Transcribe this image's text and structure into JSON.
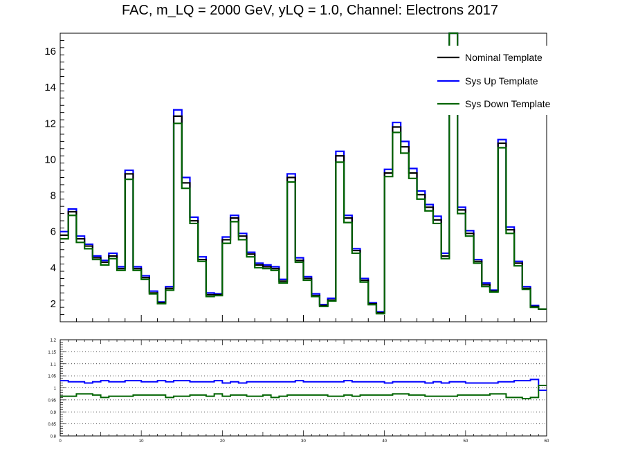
{
  "chart_data": [
    {
      "type": "line",
      "step": true,
      "title": "FAC, m_LQ = 2000 GeV, yLQ = 1.0, Channel: Electrons 2017",
      "xlim": [
        0,
        60
      ],
      "ylim": [
        1,
        17
      ],
      "y_ticks": [
        2,
        4,
        6,
        8,
        10,
        12,
        14,
        16
      ],
      "legend_position": "top-right",
      "series": [
        {
          "name": "Nominal Template",
          "color": "#000000",
          "values": [
            5.8,
            7.1,
            5.6,
            5.2,
            4.55,
            4.3,
            4.65,
            3.95,
            9.2,
            3.95,
            3.45,
            2.6,
            2.05,
            2.85,
            12.4,
            8.7,
            6.6,
            4.45,
            2.5,
            2.5,
            5.55,
            6.75,
            5.75,
            4.75,
            4.15,
            4.05,
            3.95,
            3.25,
            9.0,
            4.4,
            3.4,
            2.45,
            1.9,
            2.2,
            10.2,
            6.75,
            4.95,
            3.3,
            2.0,
            1.5,
            9.25,
            11.8,
            10.7,
            9.25,
            8.05,
            7.35,
            6.65,
            4.65,
            17.0,
            7.2,
            5.9,
            4.35,
            3.05,
            2.7,
            10.9,
            6.1,
            4.25,
            2.85,
            1.85,
            1.7
          ]
        },
        {
          "name": "Sys Up Template",
          "color": "#0000ff",
          "values": [
            6.0,
            7.25,
            5.75,
            5.3,
            4.65,
            4.4,
            4.8,
            4.05,
            9.4,
            4.05,
            3.55,
            2.7,
            2.1,
            2.95,
            12.75,
            9.0,
            6.8,
            4.6,
            2.6,
            2.55,
            5.7,
            6.9,
            5.9,
            4.85,
            4.25,
            4.15,
            4.05,
            3.35,
            9.2,
            4.55,
            3.5,
            2.55,
            1.95,
            2.3,
            10.45,
            6.9,
            5.05,
            3.4,
            2.05,
            1.55,
            9.45,
            12.05,
            11.0,
            9.5,
            8.25,
            7.5,
            6.85,
            4.8,
            17.0,
            7.35,
            6.05,
            4.45,
            3.15,
            2.75,
            11.1,
            6.25,
            4.35,
            2.95,
            1.9,
            1.7
          ]
        },
        {
          "name": "Sys Down Template",
          "color": "#006400",
          "values": [
            5.6,
            6.9,
            5.4,
            5.05,
            4.45,
            4.15,
            4.5,
            3.85,
            8.9,
            3.85,
            3.35,
            2.55,
            2.0,
            2.75,
            12.0,
            8.4,
            6.45,
            4.35,
            2.4,
            2.45,
            5.35,
            6.55,
            5.55,
            4.6,
            4.0,
            3.95,
            3.85,
            3.15,
            8.75,
            4.3,
            3.3,
            2.4,
            1.85,
            2.15,
            9.85,
            6.5,
            4.8,
            3.2,
            1.95,
            1.45,
            9.05,
            11.5,
            10.35,
            8.95,
            7.8,
            7.15,
            6.45,
            4.5,
            17.0,
            7.0,
            5.75,
            4.25,
            2.95,
            2.65,
            10.65,
            5.9,
            4.1,
            2.8,
            1.8,
            1.7
          ]
        }
      ]
    },
    {
      "type": "line",
      "step": true,
      "xlim": [
        0,
        60
      ],
      "ylim": [
        0.8,
        1.2
      ],
      "x_ticks": [
        0,
        10,
        20,
        30,
        40,
        50,
        60
      ],
      "y_ticks": [
        0.8,
        0.85,
        0.9,
        0.95,
        1,
        1.05,
        1.1,
        1.15,
        1.2
      ],
      "grid": "horizontal dotted",
      "series": [
        {
          "color": "#0000ff",
          "values": [
            1.03,
            1.025,
            1.025,
            1.02,
            1.025,
            1.03,
            1.025,
            1.025,
            1.03,
            1.03,
            1.025,
            1.025,
            1.03,
            1.025,
            1.03,
            1.03,
            1.025,
            1.025,
            1.025,
            1.03,
            1.02,
            1.025,
            1.02,
            1.025,
            1.025,
            1.025,
            1.025,
            1.025,
            1.025,
            1.03,
            1.025,
            1.025,
            1.025,
            1.025,
            1.025,
            1.03,
            1.025,
            1.025,
            1.025,
            1.025,
            1.02,
            1.025,
            1.025,
            1.025,
            1.025,
            1.02,
            1.025,
            1.02,
            1.025,
            1.025,
            1.02,
            1.02,
            1.02,
            1.02,
            1.025,
            1.025,
            1.03,
            1.03,
            1.035,
            0.99
          ]
        },
        {
          "color": "#006400",
          "values": [
            0.965,
            0.965,
            0.975,
            0.975,
            0.97,
            0.96,
            0.965,
            0.965,
            0.965,
            0.97,
            0.97,
            0.97,
            0.97,
            0.96,
            0.965,
            0.965,
            0.97,
            0.97,
            0.965,
            0.975,
            0.965,
            0.97,
            0.97,
            0.965,
            0.965,
            0.97,
            0.96,
            0.965,
            0.97,
            0.97,
            0.97,
            0.97,
            0.97,
            0.965,
            0.965,
            0.97,
            0.965,
            0.97,
            0.97,
            0.97,
            0.97,
            0.975,
            0.975,
            0.97,
            0.97,
            0.965,
            0.965,
            0.965,
            0.965,
            0.97,
            0.97,
            0.97,
            0.97,
            0.975,
            0.975,
            0.96,
            0.96,
            0.955,
            0.96,
            1.01
          ]
        }
      ]
    }
  ]
}
